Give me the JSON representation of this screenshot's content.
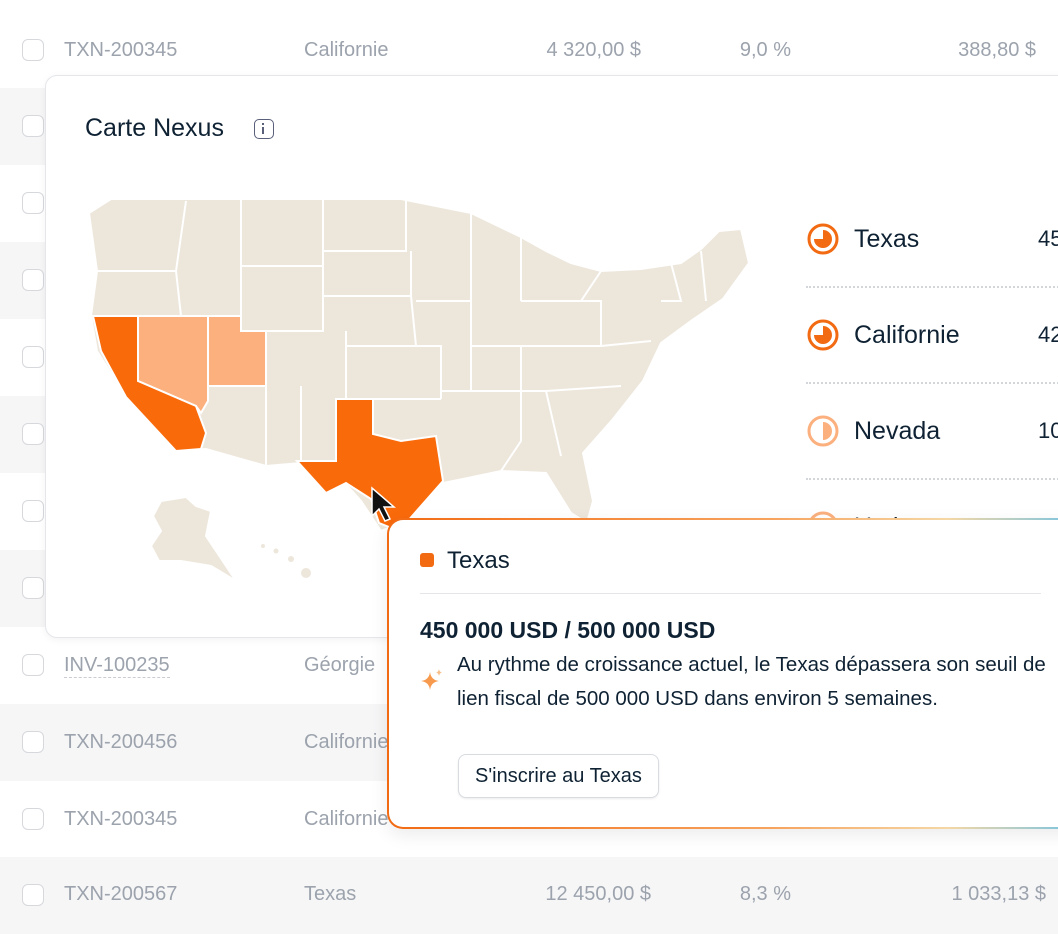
{
  "table": {
    "rows": [
      [
        "TXN-200345",
        "Californie",
        "4 320,00 $",
        "9,0 %",
        "388,80 $"
      ],
      [
        "INV-100235",
        "Géorgie"
      ],
      [
        "TXN-200456",
        "Californie"
      ],
      [
        "TXN-200345",
        "Californie"
      ],
      [
        "TXN-200567",
        "Texas",
        "12 450,00 $",
        "8,3 %",
        "1 033,13 $"
      ]
    ]
  },
  "nexus_card": {
    "title": "Carte Nexus",
    "legend": [
      {
        "state": "Texas",
        "amount": "45"
      },
      {
        "state": "Californie",
        "amount": "42"
      },
      {
        "state": "Nevada",
        "amount": "10"
      },
      {
        "state": "Utah"
      }
    ]
  },
  "tooltip": {
    "state": "Texas",
    "amount": "450 000 USD / 500 000 USD",
    "message": "Au rythme de croissance actuel, le Texas dépassera son seuil de lien fiscal de 500 000 USD dans environ 5 semaines.",
    "button": "S'inscrire au Texas"
  }
}
